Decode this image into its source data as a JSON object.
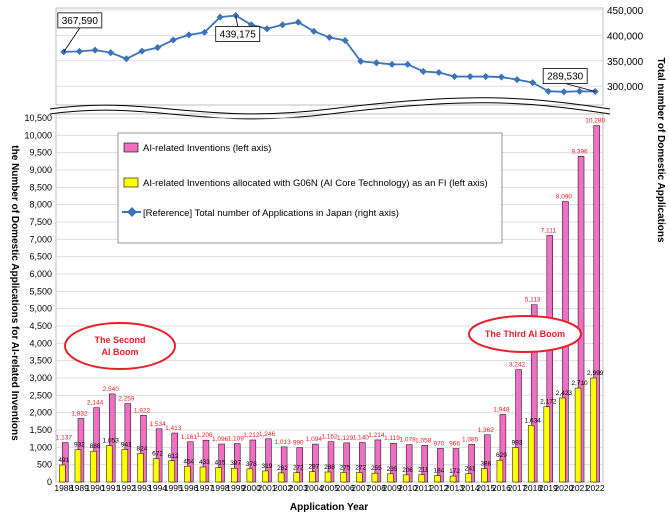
{
  "chart_data": {
    "type": "bar",
    "categories": [
      "1988",
      "1989",
      "1990",
      "1991",
      "1992",
      "1993",
      "1994",
      "1995",
      "1996",
      "1997",
      "1998",
      "1999",
      "2000",
      "2001",
      "2002",
      "2003",
      "2004",
      "2005",
      "2006",
      "2007",
      "2008",
      "2009",
      "2010",
      "2011",
      "2012",
      "2013",
      "2014",
      "2015",
      "2016",
      "2017",
      "2018",
      "2019",
      "2020",
      "2021",
      "2022"
    ],
    "series": [
      {
        "name": "AI-related Inventions (left axis)",
        "color": "#f06ec4",
        "label_color": "#e8202a",
        "values": [
          1137,
          1832,
          2144,
          2540,
          2259,
          1922,
          1534,
          1413,
          1161,
          1206,
          1096,
          1109,
          1212,
          1246,
          1013,
          990,
          1094,
          1162,
          1129,
          1140,
          1214,
          1119,
          1078,
          1058,
          970,
          966,
          1085,
          1362,
          1948,
          3242,
          5113,
          7111,
          8090,
          9396,
          10280
        ]
      },
      {
        "name": "AI-related Inventions allocated with G06N (AI Core Technology) as an FI (left axis)",
        "color": "#ffff00",
        "label_color": "#000000",
        "values": [
          491,
          932,
          888,
          1053,
          941,
          824,
          672,
          612,
          454,
          433,
          415,
          397,
          378,
          319,
          262,
          272,
          297,
          288,
          275,
          272,
          255,
          235,
          206,
          211,
          184,
          172,
          241,
          388,
          629,
          993,
          1634,
          2172,
          2423,
          2710,
          2999
        ]
      }
    ],
    "line_series": {
      "name": "[Reference] Total number of Applications in Japan (right axis)",
      "color": "#3b73b9",
      "values": [
        367590,
        368500,
        371000,
        366000,
        354000,
        369000,
        376000,
        391000,
        401000,
        406000,
        436000,
        439175,
        421000,
        413000,
        421000,
        426000,
        408000,
        396000,
        390000,
        349000,
        346000,
        343000,
        343000,
        329000,
        327000,
        319000,
        319000,
        319000,
        318000,
        313000,
        307000,
        290000,
        289000,
        290000,
        289530
      ]
    },
    "callouts": [
      {
        "index": 0,
        "text": "367,590"
      },
      {
        "index": 11,
        "text": "439,175"
      },
      {
        "index": 34,
        "text": "289,530"
      }
    ],
    "left_ticks": [
      "0",
      "500",
      "1,000",
      "1,500",
      "2,000",
      "2,500",
      "3,000",
      "3,500",
      "4,000",
      "4,500",
      "5,000",
      "5,500",
      "6,000",
      "6,500",
      "7,000",
      "7,500",
      "8,000",
      "8,500",
      "9,000",
      "9,500",
      "10,000",
      "10,500"
    ],
    "ylim": [
      0,
      10500
    ],
    "right_ticks": [
      "300,000",
      "350,000",
      "400,000",
      "450,000"
    ],
    "right_tick_values": [
      300000,
      350000,
      400000,
      450000
    ],
    "y2lim": [
      263000,
      450000
    ],
    "xlabel": "Application Year",
    "ylabel": "the Number of Domestic Applications for AI-related Inventions",
    "y2label": "Total number of Domestic Applications",
    "annotations": [
      {
        "text_lines": [
          "The Second",
          "AI Boom"
        ]
      },
      {
        "text_lines": [
          "The Third AI Boom"
        ]
      }
    ],
    "legend_position": "upper-center"
  }
}
